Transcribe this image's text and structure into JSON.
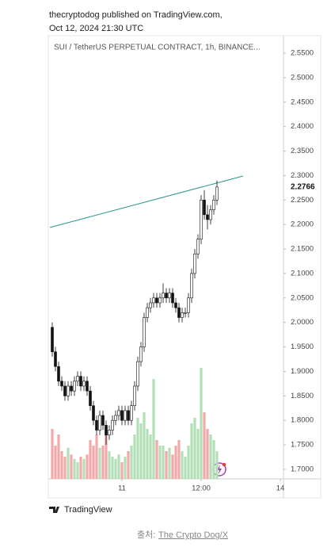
{
  "header": {
    "line1": "thecryptodog published on TradingView.com,",
    "line2": "Oct 12, 2024 21:30 UTC"
  },
  "chart_data": {
    "type": "candlestick",
    "title": "SUI / TetherUS PERPETUAL CONTRACT, 1h, BINANCE...",
    "candles": [
      [
        1.99,
        2.0,
        1.93,
        1.94
      ],
      [
        1.94,
        1.95,
        1.9,
        1.91
      ],
      [
        1.91,
        1.92,
        1.87,
        1.88
      ],
      [
        1.88,
        1.89,
        1.86,
        1.87
      ],
      [
        1.87,
        1.88,
        1.84,
        1.85
      ],
      [
        1.85,
        1.88,
        1.84,
        1.87
      ],
      [
        1.87,
        1.88,
        1.85,
        1.86
      ],
      [
        1.86,
        1.89,
        1.85,
        1.88
      ],
      [
        1.88,
        1.9,
        1.87,
        1.89
      ],
      [
        1.89,
        1.9,
        1.86,
        1.87
      ],
      [
        1.87,
        1.89,
        1.86,
        1.88
      ],
      [
        1.88,
        1.89,
        1.85,
        1.86
      ],
      [
        1.86,
        1.87,
        1.82,
        1.83
      ],
      [
        1.83,
        1.84,
        1.79,
        1.8
      ],
      [
        1.8,
        1.81,
        1.77,
        1.78
      ],
      [
        1.78,
        1.82,
        1.77,
        1.81
      ],
      [
        1.81,
        1.82,
        1.78,
        1.79
      ],
      [
        1.79,
        1.8,
        1.75,
        1.77
      ],
      [
        1.77,
        1.79,
        1.76,
        1.78
      ],
      [
        1.78,
        1.81,
        1.77,
        1.8
      ],
      [
        1.8,
        1.82,
        1.79,
        1.81
      ],
      [
        1.81,
        1.83,
        1.8,
        1.82
      ],
      [
        1.82,
        1.83,
        1.79,
        1.8
      ],
      [
        1.8,
        1.83,
        1.79,
        1.82
      ],
      [
        1.82,
        1.83,
        1.79,
        1.8
      ],
      [
        1.8,
        1.84,
        1.79,
        1.83
      ],
      [
        1.83,
        1.88,
        1.82,
        1.87
      ],
      [
        1.87,
        1.93,
        1.86,
        1.92
      ],
      [
        1.92,
        1.96,
        1.91,
        1.95
      ],
      [
        1.95,
        2.02,
        1.94,
        2.01
      ],
      [
        2.01,
        2.04,
        2.0,
        2.03
      ],
      [
        2.03,
        2.05,
        2.02,
        2.04
      ],
      [
        2.04,
        2.06,
        2.03,
        2.05
      ],
      [
        2.05,
        2.06,
        2.03,
        2.04
      ],
      [
        2.04,
        2.06,
        2.03,
        2.05
      ],
      [
        2.05,
        2.08,
        2.04,
        2.06
      ],
      [
        2.06,
        2.07,
        2.04,
        2.05
      ],
      [
        2.05,
        2.07,
        2.04,
        2.06
      ],
      [
        2.06,
        2.07,
        2.03,
        2.04
      ],
      [
        2.04,
        2.05,
        2.02,
        2.03
      ],
      [
        2.03,
        2.04,
        2.0,
        2.01
      ],
      [
        2.01,
        2.03,
        2.0,
        2.02
      ],
      [
        2.02,
        2.03,
        2.01,
        2.02
      ],
      [
        2.02,
        2.06,
        2.01,
        2.05
      ],
      [
        2.05,
        2.11,
        2.04,
        2.1
      ],
      [
        2.1,
        2.15,
        2.09,
        2.14
      ],
      [
        2.14,
        2.18,
        2.13,
        2.17
      ],
      [
        2.17,
        2.26,
        2.16,
        2.25
      ],
      [
        2.25,
        2.27,
        2.21,
        2.22
      ],
      [
        2.22,
        2.24,
        2.19,
        2.21
      ],
      [
        2.21,
        2.24,
        2.2,
        2.23
      ],
      [
        2.23,
        2.26,
        2.22,
        2.25
      ],
      [
        2.25,
        2.29,
        2.24,
        2.2766
      ]
    ],
    "volume": [
      45,
      30,
      40,
      25,
      20,
      28,
      22,
      18,
      15,
      20,
      18,
      22,
      35,
      30,
      40,
      28,
      30,
      45,
      25,
      20,
      18,
      22,
      15,
      20,
      25,
      30,
      40,
      55,
      50,
      60,
      45,
      40,
      90,
      35,
      30,
      30,
      25,
      28,
      22,
      30,
      35,
      25,
      20,
      30,
      50,
      55,
      45,
      100,
      60,
      45,
      40,
      35,
      25
    ],
    "volume_lim": [
      0,
      100
    ],
    "up_color": "#ffffff",
    "down_color": "#111111",
    "volume_up_color": "#b2dfb5",
    "volume_down_color": "#f2a9a9",
    "trendline": {
      "x": [
        -0.75,
        60.25
      ],
      "y": [
        2.194,
        2.299
      ],
      "color": "#26948a"
    },
    "last_price": 2.2766,
    "xlim": [
      -1,
      73
    ],
    "xticks": [
      {
        "value": 22,
        "label": "11"
      },
      {
        "value": 47,
        "label": "12:00"
      },
      {
        "value": 72,
        "label": "14"
      }
    ],
    "ylim": [
      1.6805,
      2.5856
    ],
    "yticks": [
      {
        "value": 2.55,
        "label": "2.5500"
      },
      {
        "value": 2.5,
        "label": "2.5000"
      },
      {
        "value": 2.45,
        "label": "2.4500"
      },
      {
        "value": 2.4,
        "label": "2.4000"
      },
      {
        "value": 2.35,
        "label": "2.3500"
      },
      {
        "value": 2.3,
        "label": "2.3000"
      },
      {
        "value": 2.25,
        "label": "2.2500"
      },
      {
        "value": 2.2,
        "label": "2.2000"
      },
      {
        "value": 2.15,
        "label": "2.1500"
      },
      {
        "value": 2.1,
        "label": "2.1000"
      },
      {
        "value": 2.05,
        "label": "2.0500"
      },
      {
        "value": 2.0,
        "label": "2.0000"
      },
      {
        "value": 1.95,
        "label": "1.9500"
      },
      {
        "value": 1.9,
        "label": "1.9000"
      },
      {
        "value": 1.85,
        "label": "1.8500"
      },
      {
        "value": 1.8,
        "label": "1.8000"
      },
      {
        "value": 1.75,
        "label": "1.7500"
      },
      {
        "value": 1.7,
        "label": "1.7000"
      }
    ],
    "grid": false
  },
  "footer": {
    "brand": "TradingView",
    "source_prefix": "출처: ",
    "source_link": "The Crypto Dog/X"
  }
}
